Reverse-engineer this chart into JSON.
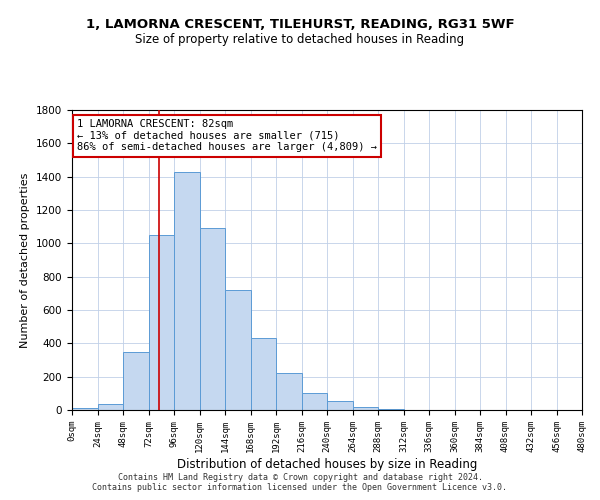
{
  "title": "1, LAMORNA CRESCENT, TILEHURST, READING, RG31 5WF",
  "subtitle": "Size of property relative to detached houses in Reading",
  "xlabel": "Distribution of detached houses by size in Reading",
  "ylabel": "Number of detached properties",
  "bin_edges": [
    0,
    24,
    48,
    72,
    96,
    120,
    144,
    168,
    192,
    216,
    240,
    264,
    288,
    312,
    336,
    360,
    384,
    408,
    432,
    456,
    480
  ],
  "bar_heights": [
    15,
    35,
    350,
    1050,
    1430,
    1090,
    720,
    430,
    220,
    105,
    55,
    20,
    5,
    2,
    1,
    0,
    0,
    0,
    0,
    0
  ],
  "bar_color": "#c5d8f0",
  "bar_edge_color": "#5b9bd5",
  "marker_x": 82,
  "marker_line_color": "#cc0000",
  "ylim": [
    0,
    1800
  ],
  "xlim": [
    0,
    480
  ],
  "annotation_line1": "1 LAMORNA CRESCENT: 82sqm",
  "annotation_line2": "← 13% of detached houses are smaller (715)",
  "annotation_line3": "86% of semi-detached houses are larger (4,809) →",
  "annotation_box_color": "#cc0000",
  "annotation_box_facecolor": "#ffffff",
  "footer_line1": "Contains HM Land Registry data © Crown copyright and database right 2024.",
  "footer_line2": "Contains public sector information licensed under the Open Government Licence v3.0.",
  "bg_color": "#ffffff",
  "grid_color": "#c0d0e8",
  "yticks": [
    0,
    200,
    400,
    600,
    800,
    1000,
    1200,
    1400,
    1600,
    1800
  ],
  "tick_labels": [
    "0sqm",
    "24sqm",
    "48sqm",
    "72sqm",
    "96sqm",
    "120sqm",
    "144sqm",
    "168sqm",
    "192sqm",
    "216sqm",
    "240sqm",
    "264sqm",
    "288sqm",
    "312sqm",
    "336sqm",
    "360sqm",
    "384sqm",
    "408sqm",
    "432sqm",
    "456sqm",
    "480sqm"
  ]
}
